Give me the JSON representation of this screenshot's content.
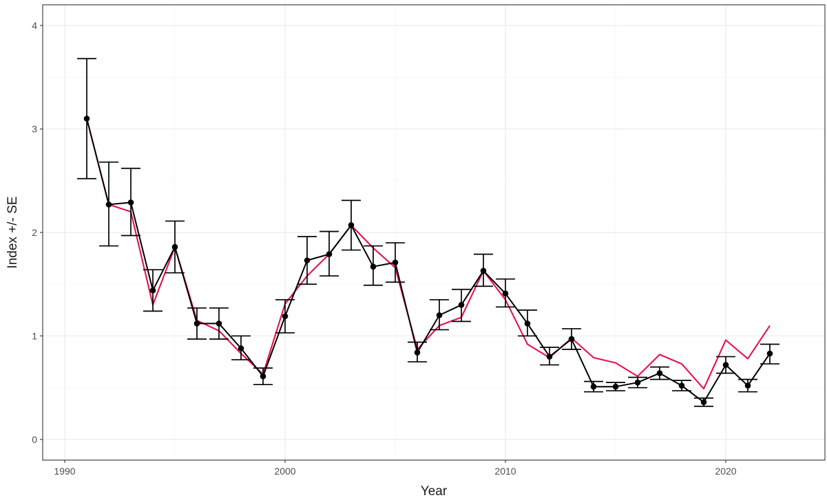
{
  "chart_data": {
    "type": "line",
    "xlabel": "Year",
    "ylabel": "Index +/- SE",
    "xlim": [
      1989,
      2024.5
    ],
    "ylim": [
      -0.2,
      4.2
    ],
    "x_ticks": [
      1990,
      2000,
      2010,
      2020
    ],
    "y_ticks": [
      0,
      1,
      2,
      3,
      4
    ],
    "grid": true,
    "theme": "bw",
    "series": [
      {
        "color": "#000000",
        "markers": true,
        "error_bars": true,
        "x": [
          1991,
          1992,
          1993,
          1994,
          1995,
          1996,
          1997,
          1998,
          1999,
          2000,
          2001,
          2002,
          2003,
          2004,
          2005,
          2006,
          2007,
          2008,
          2009,
          2010,
          2011,
          2012,
          2013,
          2014,
          2015,
          2016,
          2017,
          2018,
          2019,
          2020,
          2021,
          2022
        ],
        "y": [
          3.1,
          2.27,
          2.29,
          1.44,
          1.86,
          1.12,
          1.12,
          0.88,
          0.61,
          1.19,
          1.73,
          1.79,
          2.07,
          1.67,
          1.71,
          0.84,
          1.2,
          1.3,
          1.63,
          1.41,
          1.12,
          0.8,
          0.97,
          0.51,
          0.51,
          0.55,
          0.64,
          0.52,
          0.36,
          0.72,
          0.52,
          0.83
        ],
        "lower": [
          2.52,
          1.87,
          1.97,
          1.24,
          1.61,
          0.97,
          0.97,
          0.77,
          0.53,
          1.03,
          1.5,
          1.58,
          1.83,
          1.49,
          1.52,
          0.75,
          1.06,
          1.14,
          1.48,
          1.28,
          1.0,
          0.72,
          0.87,
          0.46,
          0.47,
          0.5,
          0.58,
          0.47,
          0.32,
          0.64,
          0.46,
          0.73
        ],
        "upper": [
          3.68,
          2.68,
          2.62,
          1.64,
          2.11,
          1.27,
          1.27,
          1.0,
          0.69,
          1.35,
          1.96,
          2.01,
          2.31,
          1.87,
          1.9,
          0.94,
          1.35,
          1.45,
          1.79,
          1.55,
          1.25,
          0.89,
          1.07,
          0.56,
          0.55,
          0.6,
          0.7,
          0.57,
          0.4,
          0.8,
          0.58,
          0.92
        ]
      },
      {
        "color": "#e8104a",
        "markers": false,
        "error_bars": false,
        "x": [
          1991,
          1992,
          1993,
          1994,
          1995,
          1996,
          1997,
          1998,
          1999,
          2000,
          2001,
          2002,
          2003,
          2004,
          2005,
          2006,
          2007,
          2008,
          2009,
          2010,
          2011,
          2012,
          2013,
          2014,
          2015,
          2016,
          2017,
          2018,
          2019,
          2020,
          2021,
          2022
        ],
        "y": [
          3.1,
          2.27,
          2.2,
          1.3,
          1.86,
          1.15,
          1.05,
          0.83,
          0.63,
          1.31,
          1.58,
          1.79,
          2.07,
          1.85,
          1.66,
          0.87,
          1.1,
          1.18,
          1.63,
          1.35,
          0.92,
          0.79,
          0.98,
          0.79,
          0.74,
          0.61,
          0.82,
          0.73,
          0.49,
          0.96,
          0.78,
          1.1
        ]
      }
    ]
  }
}
